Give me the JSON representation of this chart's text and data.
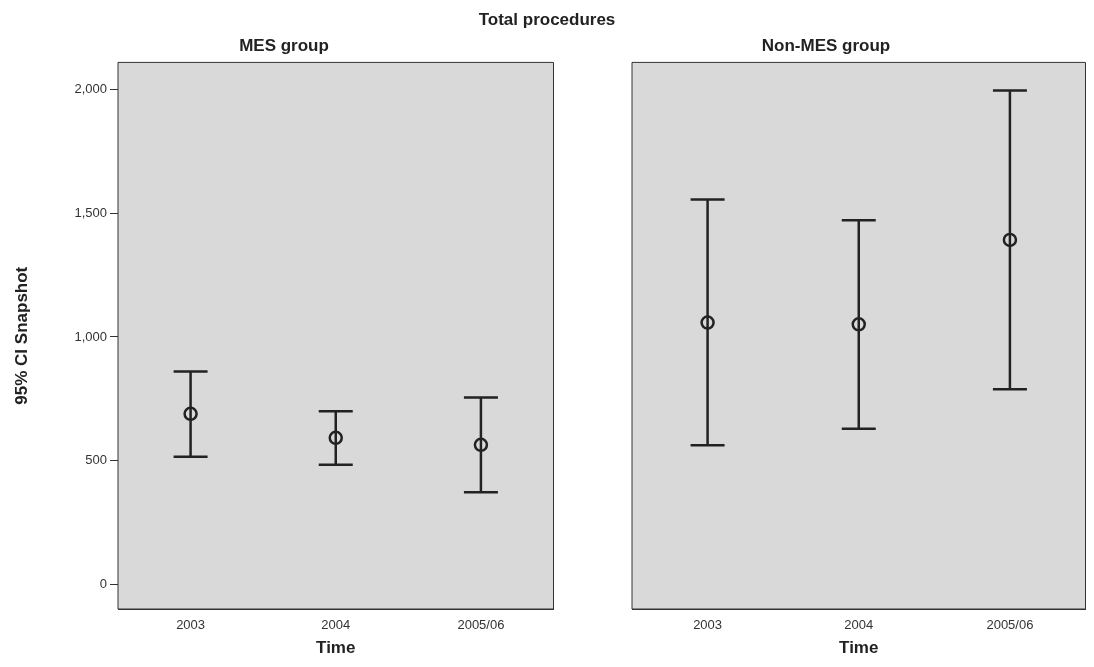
{
  "chart_data": [
    {
      "type": "scatter",
      "title": "MES group",
      "annotations": [
        "Total procedures"
      ],
      "xlabel": "Time",
      "ylabel": "95% CI Snapshot",
      "categories": [
        "2003",
        "2004",
        "2005/06"
      ],
      "series": [
        {
          "color": "#222222",
          "values": [
            689,
            592,
            564
          ],
          "errors": [
            [
              516,
              860
            ],
            [
              483,
              700
            ],
            [
              372,
              755
            ]
          ]
        }
      ],
      "ylim": [
        -100,
        2110
      ],
      "yticks": [
        {
          "value": 0,
          "label": "0"
        },
        {
          "value": 500,
          "label": "500"
        },
        {
          "value": 1000,
          "label": "1,000"
        },
        {
          "value": 1500,
          "label": "1,500"
        },
        {
          "value": 2000,
          "label": "2,000"
        }
      ],
      "grid": false,
      "legend": false,
      "marker": "circle"
    },
    {
      "type": "scatter",
      "title": "Non-MES group",
      "xlabel": "Time",
      "categories": [
        "2003",
        "2004",
        "2005/06"
      ],
      "series": [
        {
          "color": "#222222",
          "values": [
            1058,
            1051,
            1392
          ],
          "errors": [
            [
              562,
              1556
            ],
            [
              629,
              1472
            ],
            [
              788,
              1996
            ]
          ]
        }
      ],
      "ylim": [
        -100,
        2110
      ],
      "grid": false,
      "legend": false,
      "marker": "circle",
      "tick_labels": "x"
    }
  ]
}
